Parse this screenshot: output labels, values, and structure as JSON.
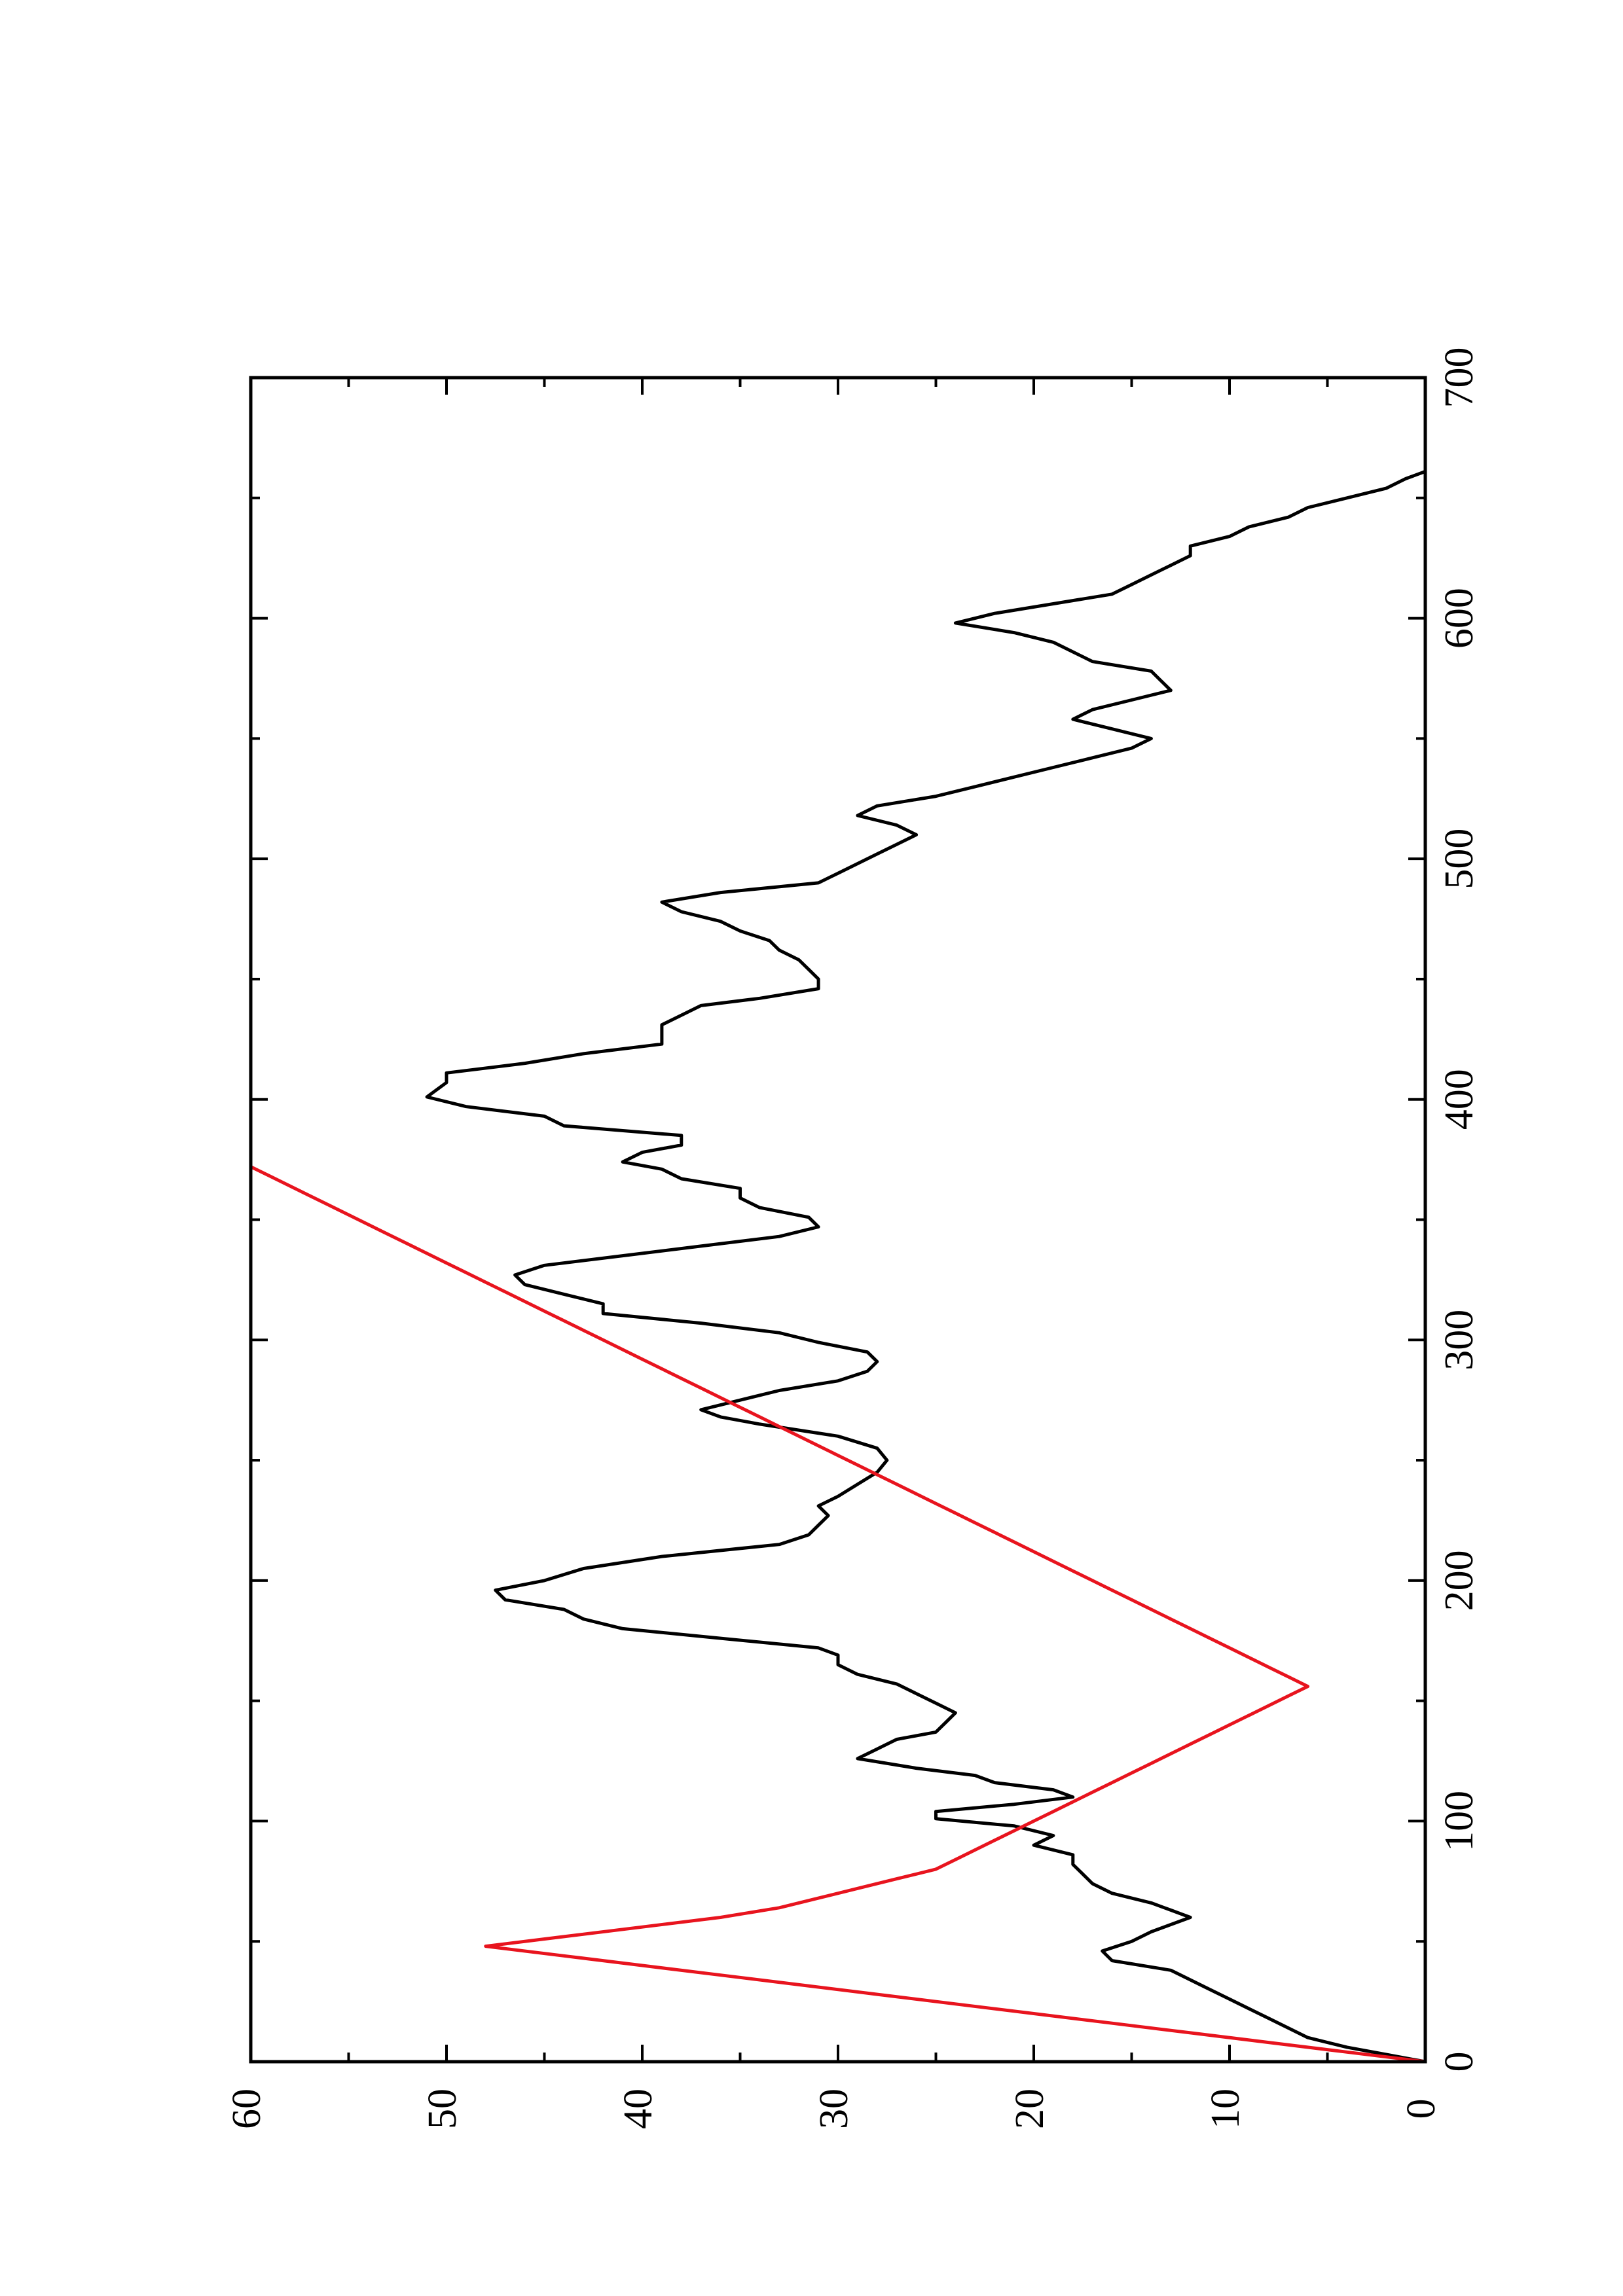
{
  "chart_data": {
    "type": "line",
    "title": "",
    "xlabel": "",
    "ylabel": "",
    "xlim": [
      0,
      700
    ],
    "ylim": [
      0,
      60
    ],
    "grid": false,
    "legend": "none",
    "x_ticks": [
      0,
      100,
      200,
      300,
      400,
      500,
      600,
      700
    ],
    "x_minor_ticks": [
      50,
      150,
      250,
      350,
      450,
      550,
      650
    ],
    "y_ticks": [
      0,
      10,
      20,
      30,
      40,
      50,
      60
    ],
    "y_minor_ticks": [
      5,
      15,
      25,
      35,
      45,
      55
    ],
    "x_tick_labels": [
      "0",
      "100",
      "200",
      "300",
      "400",
      "500",
      "600",
      "700"
    ],
    "y_tick_labels": [
      "0",
      "10",
      "20",
      "30",
      "40",
      "50",
      "60"
    ],
    "series": [
      {
        "color": "#000000",
        "points": [
          [
            0,
            0
          ],
          [
            3,
            2
          ],
          [
            6,
            4
          ],
          [
            10,
            6
          ],
          [
            14,
            7
          ],
          [
            18,
            8
          ],
          [
            22,
            9
          ],
          [
            26,
            10
          ],
          [
            30,
            11
          ],
          [
            34,
            12
          ],
          [
            38,
            13
          ],
          [
            42,
            16
          ],
          [
            46,
            16.5
          ],
          [
            50,
            15
          ],
          [
            54,
            14
          ],
          [
            57,
            13
          ],
          [
            60,
            12
          ],
          [
            63,
            13
          ],
          [
            66,
            14
          ],
          [
            70,
            16
          ],
          [
            74,
            17
          ],
          [
            78,
            17.5
          ],
          [
            82,
            18
          ],
          [
            86,
            18
          ],
          [
            90,
            20
          ],
          [
            94,
            19
          ],
          [
            98,
            21
          ],
          [
            101,
            25
          ],
          [
            104,
            25
          ],
          [
            107,
            21
          ],
          [
            110,
            18
          ],
          [
            113,
            19
          ],
          [
            116,
            22
          ],
          [
            119,
            23
          ],
          [
            122,
            26
          ],
          [
            126,
            29
          ],
          [
            130,
            28
          ],
          [
            134,
            27
          ],
          [
            137,
            25
          ],
          [
            141,
            24.5
          ],
          [
            145,
            24
          ],
          [
            149,
            25
          ],
          [
            153,
            26
          ],
          [
            157,
            27
          ],
          [
            161,
            29
          ],
          [
            165,
            30
          ],
          [
            169,
            30
          ],
          [
            172,
            31
          ],
          [
            176,
            36
          ],
          [
            180,
            41
          ],
          [
            184,
            43
          ],
          [
            188,
            44
          ],
          [
            192,
            47
          ],
          [
            196,
            47.5
          ],
          [
            200,
            45
          ],
          [
            205,
            43
          ],
          [
            210,
            39
          ],
          [
            215,
            33
          ],
          [
            219,
            31.5
          ],
          [
            223,
            31
          ],
          [
            227,
            30.5
          ],
          [
            231,
            31
          ],
          [
            235,
            30
          ],
          [
            240,
            29
          ],
          [
            245,
            28
          ],
          [
            250,
            27.5
          ],
          [
            255,
            28
          ],
          [
            260,
            30
          ],
          [
            265,
            34
          ],
          [
            268,
            36
          ],
          [
            271,
            37
          ],
          [
            275,
            35
          ],
          [
            279,
            33
          ],
          [
            283,
            30
          ],
          [
            287,
            28.5
          ],
          [
            291,
            28
          ],
          [
            295,
            28.5
          ],
          [
            299,
            31
          ],
          [
            303,
            33
          ],
          [
            307,
            37
          ],
          [
            311,
            42
          ],
          [
            315,
            42
          ],
          [
            319,
            44
          ],
          [
            323,
            46
          ],
          [
            327,
            46.5
          ],
          [
            331,
            45
          ],
          [
            335,
            41
          ],
          [
            339,
            37
          ],
          [
            343,
            33
          ],
          [
            347,
            31
          ],
          [
            351,
            31.5
          ],
          [
            355,
            34
          ],
          [
            359,
            35
          ],
          [
            363,
            35
          ],
          [
            367,
            38
          ],
          [
            371,
            39
          ],
          [
            374,
            41
          ],
          [
            378,
            40
          ],
          [
            381,
            38
          ],
          [
            385,
            38
          ],
          [
            389,
            44
          ],
          [
            393,
            45
          ],
          [
            397,
            49
          ],
          [
            401,
            51
          ],
          [
            404,
            50.5
          ],
          [
            407,
            50
          ],
          [
            411,
            50
          ],
          [
            415,
            46
          ],
          [
            419,
            43
          ],
          [
            423,
            39
          ],
          [
            427,
            39
          ],
          [
            431,
            39
          ],
          [
            435,
            38
          ],
          [
            439,
            37
          ],
          [
            442,
            34
          ],
          [
            446,
            31
          ],
          [
            450,
            31
          ],
          [
            454,
            31.5
          ],
          [
            458,
            32
          ],
          [
            462,
            33
          ],
          [
            466,
            33.5
          ],
          [
            470,
            35
          ],
          [
            474,
            36
          ],
          [
            478,
            38
          ],
          [
            482,
            39
          ],
          [
            486,
            36
          ],
          [
            490,
            31
          ],
          [
            494,
            30
          ],
          [
            498,
            29
          ],
          [
            502,
            28
          ],
          [
            506,
            27
          ],
          [
            510,
            26
          ],
          [
            514,
            27
          ],
          [
            518,
            29
          ],
          [
            522,
            28
          ],
          [
            526,
            25
          ],
          [
            530,
            23
          ],
          [
            534,
            21
          ],
          [
            538,
            19
          ],
          [
            542,
            17
          ],
          [
            546,
            15
          ],
          [
            550,
            14
          ],
          [
            554,
            16
          ],
          [
            558,
            18
          ],
          [
            562,
            17
          ],
          [
            566,
            15
          ],
          [
            570,
            13
          ],
          [
            574,
            13.5
          ],
          [
            578,
            14
          ],
          [
            582,
            17
          ],
          [
            586,
            18
          ],
          [
            590,
            19
          ],
          [
            594,
            21
          ],
          [
            598,
            24
          ],
          [
            602,
            22
          ],
          [
            606,
            19
          ],
          [
            610,
            16
          ],
          [
            614,
            15
          ],
          [
            618,
            14
          ],
          [
            622,
            13
          ],
          [
            626,
            12
          ],
          [
            630,
            12
          ],
          [
            634,
            10
          ],
          [
            638,
            9
          ],
          [
            642,
            7
          ],
          [
            646,
            6
          ],
          [
            650,
            4
          ],
          [
            654,
            2
          ],
          [
            658,
            1
          ],
          [
            661,
            0
          ]
        ]
      },
      {
        "color": "#e8141e",
        "points": [
          [
            0,
            0
          ],
          [
            4,
            4
          ],
          [
            8,
            8
          ],
          [
            12,
            12
          ],
          [
            16,
            16
          ],
          [
            20,
            20
          ],
          [
            24,
            24
          ],
          [
            28,
            28
          ],
          [
            32,
            32
          ],
          [
            36,
            36
          ],
          [
            40,
            40
          ],
          [
            44,
            44
          ],
          [
            48,
            48
          ],
          [
            52,
            44
          ],
          [
            56,
            40
          ],
          [
            60,
            36
          ],
          [
            64,
            33
          ],
          [
            68,
            31
          ],
          [
            72,
            29
          ],
          [
            76,
            27
          ],
          [
            80,
            25
          ],
          [
            84,
            24
          ],
          [
            88,
            23
          ],
          [
            92,
            22
          ],
          [
            96,
            21
          ],
          [
            100,
            20
          ],
          [
            104,
            19
          ],
          [
            108,
            18
          ],
          [
            112,
            17
          ],
          [
            116,
            16
          ],
          [
            120,
            15
          ],
          [
            124,
            14
          ],
          [
            128,
            13
          ],
          [
            132,
            12
          ],
          [
            136,
            11
          ],
          [
            140,
            10
          ],
          [
            144,
            9
          ],
          [
            148,
            8
          ],
          [
            152,
            7
          ],
          [
            156,
            6
          ],
          [
            160,
            7
          ],
          [
            164,
            8
          ],
          [
            168,
            9
          ],
          [
            172,
            10
          ],
          [
            176,
            11
          ],
          [
            180,
            12
          ],
          [
            184,
            13
          ],
          [
            188,
            14
          ],
          [
            192,
            15
          ],
          [
            196,
            16
          ],
          [
            200,
            17
          ],
          [
            204,
            18
          ],
          [
            208,
            19
          ],
          [
            212,
            20
          ],
          [
            216,
            21
          ],
          [
            220,
            22
          ],
          [
            224,
            23
          ],
          [
            228,
            24
          ],
          [
            232,
            25
          ],
          [
            236,
            26
          ],
          [
            240,
            27
          ],
          [
            244,
            28
          ],
          [
            248,
            29
          ],
          [
            252,
            30
          ],
          [
            256,
            31
          ],
          [
            260,
            32
          ],
          [
            264,
            33
          ],
          [
            268,
            34
          ],
          [
            272,
            35
          ],
          [
            276,
            36
          ],
          [
            280,
            37
          ],
          [
            284,
            38
          ],
          [
            288,
            39
          ],
          [
            292,
            40
          ],
          [
            296,
            41
          ],
          [
            300,
            42
          ],
          [
            304,
            43
          ],
          [
            308,
            44
          ],
          [
            312,
            45
          ],
          [
            316,
            46
          ],
          [
            320,
            47
          ],
          [
            324,
            48
          ],
          [
            328,
            49
          ],
          [
            332,
            50
          ],
          [
            336,
            51
          ],
          [
            340,
            52
          ],
          [
            344,
            53
          ],
          [
            348,
            54
          ],
          [
            352,
            55
          ],
          [
            356,
            56
          ],
          [
            360,
            57
          ],
          [
            364,
            58
          ],
          [
            368,
            59
          ],
          [
            372,
            60
          ]
        ]
      },
      {
        "color": "#22dd00",
        "points": []
      }
    ]
  }
}
